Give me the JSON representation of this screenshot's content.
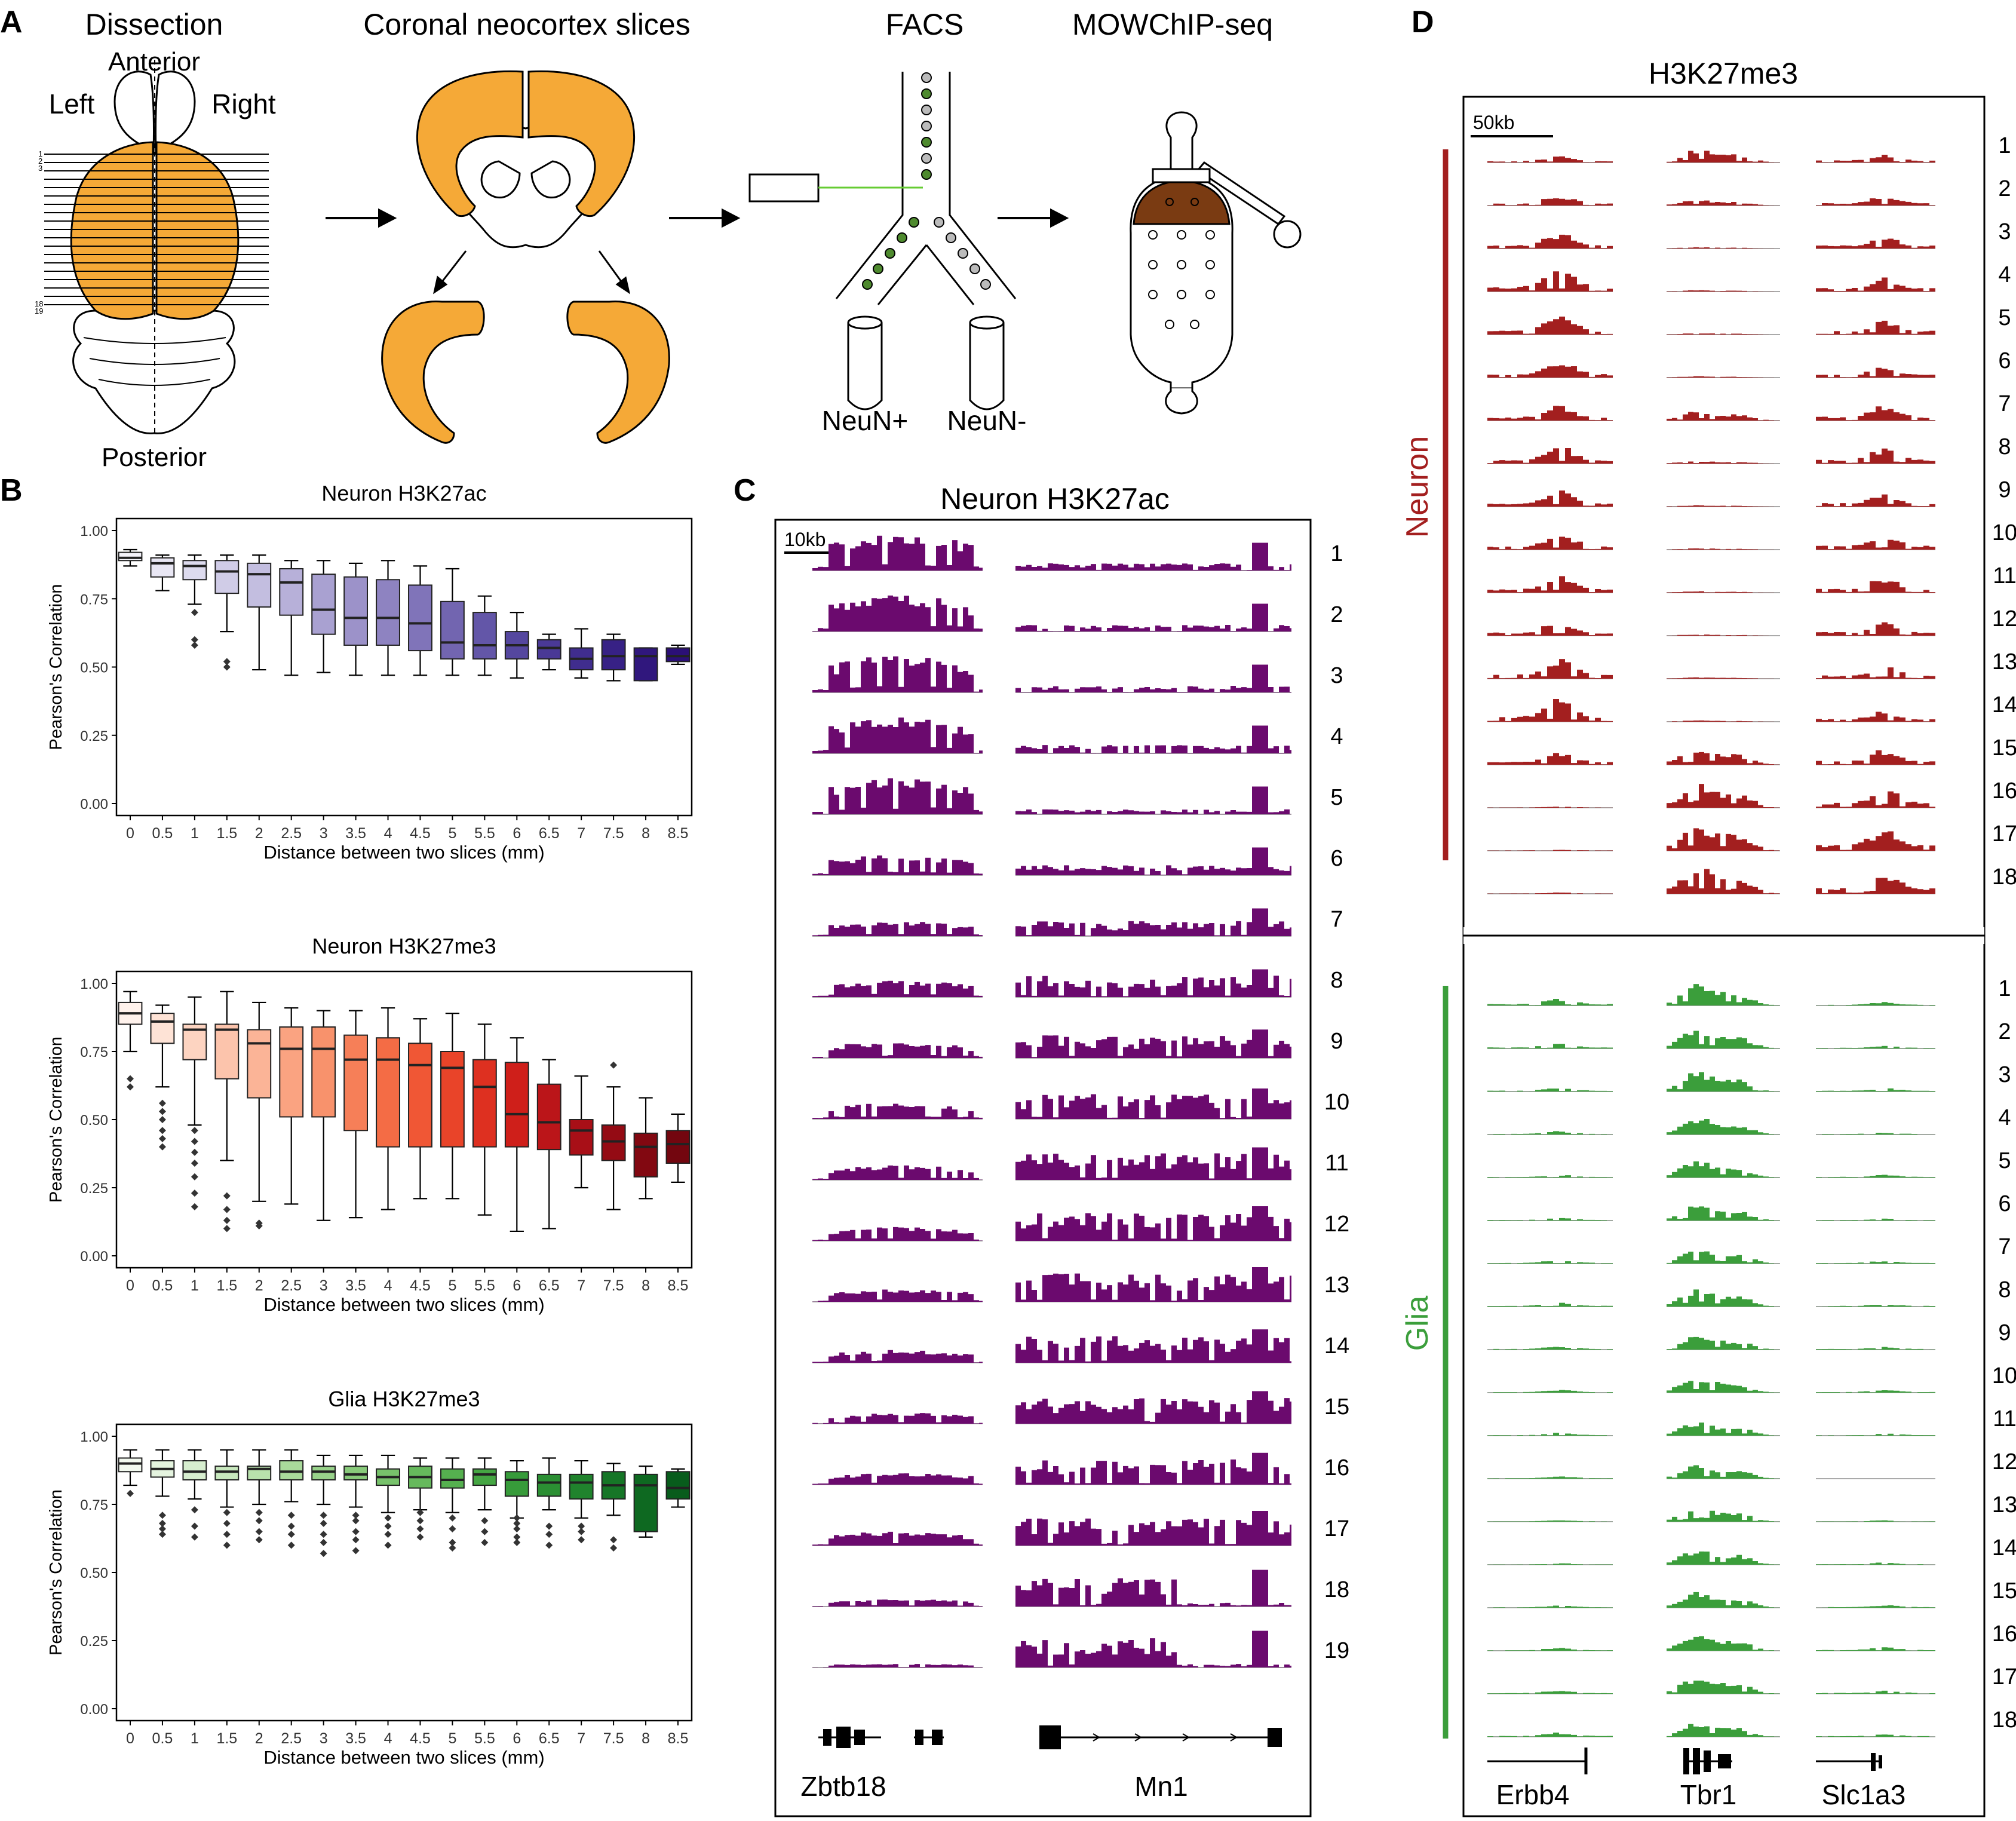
{
  "panels": {
    "A": {
      "letter": "A",
      "step_labels": [
        "Dissection",
        "Coronal neocortex slices",
        "FACS",
        "MOWChIP-seq"
      ],
      "brain": {
        "anterior": "Anterior",
        "posterior": "Posterior",
        "left": "Left",
        "right": "Right",
        "slice_ticks": [
          "1",
          "2",
          "3",
          "18",
          "19"
        ]
      },
      "facs": {
        "pos": "NeuN+",
        "neg": "NeuN-"
      }
    },
    "B": {
      "letter": "B",
      "tick_y": [
        "0.00",
        "0.25",
        "0.50",
        "0.75",
        "1.00"
      ],
      "xlabel": "Distance between two slices (mm)",
      "ylabel": "Pearson's Correlation"
    },
    "C": {
      "letter": "C",
      "title": "Neuron H3K27ac",
      "scale": "10kb",
      "genes": [
        "Zbtb18",
        "Mn1"
      ],
      "rows": [
        "1",
        "2",
        "3",
        "4",
        "5",
        "6",
        "7",
        "8",
        "9",
        "10",
        "11",
        "12",
        "13",
        "14",
        "15",
        "16",
        "17",
        "18",
        "19"
      ]
    },
    "D": {
      "letter": "D",
      "title": "H3K27me3",
      "scale": "50kb",
      "group_neuron": "Neuron",
      "group_glia": "Glia",
      "genes": [
        "Erbb4",
        "Tbr1",
        "Slc1a3"
      ],
      "rows": [
        "1",
        "2",
        "3",
        "4",
        "5",
        "6",
        "7",
        "8",
        "9",
        "10",
        "11",
        "12",
        "13",
        "14",
        "15",
        "16",
        "17",
        "18"
      ]
    }
  },
  "colors": {
    "orange": "#F5A937",
    "neuron_track": "#6B0A6E",
    "me3_neuron": "#A31F1F",
    "me3_glia": "#3B9E3B",
    "chip_brown": "#7A3B12",
    "cell_green": "#4E8A2E",
    "cell_grey": "#BBBBBB"
  },
  "chart_data": [
    {
      "type": "box",
      "title": "Neuron H3K27ac",
      "xlabel": "Distance between two slices (mm)",
      "ylabel": "Pearson's Correlation",
      "ylim": [
        0,
        1
      ],
      "categories": [
        "0",
        "0.5",
        "1",
        "1.5",
        "2",
        "2.5",
        "3",
        "3.5",
        "4",
        "4.5",
        "5",
        "5.5",
        "6",
        "6.5",
        "7",
        "7.5",
        "8",
        "8.5"
      ],
      "palette": [
        "#F4F3FA",
        "#E9E7F4",
        "#DDDBEE",
        "#D0CCE7",
        "#C3BEE0",
        "#B7B0D9",
        "#A9A1D1",
        "#9C92C9",
        "#8E83C1",
        "#8074B9",
        "#7265B0",
        "#6356A8",
        "#55479F",
        "#4A3996",
        "#402D8E",
        "#372185",
        "#30177D",
        "#2B0F76"
      ],
      "boxes": [
        {
          "min": 0.87,
          "q1": 0.89,
          "med": 0.9,
          "q3": 0.92,
          "max": 0.93,
          "out": []
        },
        {
          "min": 0.78,
          "q1": 0.83,
          "med": 0.88,
          "q3": 0.9,
          "max": 0.91,
          "out": []
        },
        {
          "min": 0.73,
          "q1": 0.82,
          "med": 0.87,
          "q3": 0.89,
          "max": 0.91,
          "out": [
            0.58,
            0.6,
            0.7
          ]
        },
        {
          "min": 0.63,
          "q1": 0.77,
          "med": 0.85,
          "q3": 0.89,
          "max": 0.91,
          "out": [
            0.5,
            0.52
          ]
        },
        {
          "min": 0.49,
          "q1": 0.72,
          "med": 0.84,
          "q3": 0.88,
          "max": 0.91,
          "out": []
        },
        {
          "min": 0.47,
          "q1": 0.69,
          "med": 0.81,
          "q3": 0.86,
          "max": 0.89,
          "out": []
        },
        {
          "min": 0.48,
          "q1": 0.62,
          "med": 0.71,
          "q3": 0.84,
          "max": 0.89,
          "out": []
        },
        {
          "min": 0.47,
          "q1": 0.58,
          "med": 0.68,
          "q3": 0.83,
          "max": 0.88,
          "out": []
        },
        {
          "min": 0.47,
          "q1": 0.58,
          "med": 0.68,
          "q3": 0.82,
          "max": 0.89,
          "out": []
        },
        {
          "min": 0.47,
          "q1": 0.56,
          "med": 0.66,
          "q3": 0.8,
          "max": 0.87,
          "out": []
        },
        {
          "min": 0.47,
          "q1": 0.53,
          "med": 0.59,
          "q3": 0.74,
          "max": 0.86,
          "out": []
        },
        {
          "min": 0.47,
          "q1": 0.53,
          "med": 0.58,
          "q3": 0.7,
          "max": 0.76,
          "out": []
        },
        {
          "min": 0.46,
          "q1": 0.53,
          "med": 0.58,
          "q3": 0.63,
          "max": 0.7,
          "out": []
        },
        {
          "min": 0.49,
          "q1": 0.53,
          "med": 0.57,
          "q3": 0.6,
          "max": 0.62,
          "out": []
        },
        {
          "min": 0.46,
          "q1": 0.49,
          "med": 0.53,
          "q3": 0.57,
          "max": 0.64,
          "out": []
        },
        {
          "min": 0.45,
          "q1": 0.49,
          "med": 0.54,
          "q3": 0.6,
          "max": 0.62,
          "out": []
        },
        {
          "min": 0.45,
          "q1": 0.45,
          "med": 0.54,
          "q3": 0.57,
          "max": 0.57,
          "out": []
        },
        {
          "min": 0.51,
          "q1": 0.52,
          "med": 0.54,
          "q3": 0.57,
          "max": 0.58,
          "out": []
        }
      ]
    },
    {
      "type": "box",
      "title": "Neuron H3K27me3",
      "xlabel": "Distance between two slices (mm)",
      "ylabel": "Pearson's Correlation",
      "ylim": [
        0,
        1
      ],
      "categories": [
        "0",
        "0.5",
        "1",
        "1.5",
        "2",
        "2.5",
        "3",
        "3.5",
        "4",
        "4.5",
        "5",
        "5.5",
        "6",
        "6.5",
        "7",
        "7.5",
        "8",
        "8.5"
      ],
      "palette": [
        "#FFF2EC",
        "#FEE3D6",
        "#FDD4C1",
        "#FCC4AC",
        "#FBB497",
        "#FAA381",
        "#F8926C",
        "#F67F58",
        "#F46C45",
        "#F05735",
        "#E94429",
        "#DE3020",
        "#CF1F1A",
        "#BB1519",
        "#A80F17",
        "#940B14",
        "#820811",
        "#73060F"
      ],
      "boxes": [
        {
          "min": 0.75,
          "q1": 0.85,
          "med": 0.89,
          "q3": 0.93,
          "max": 0.97,
          "out": [
            0.62,
            0.65
          ]
        },
        {
          "min": 0.62,
          "q1": 0.78,
          "med": 0.86,
          "q3": 0.89,
          "max": 0.92,
          "out": [
            0.4,
            0.43,
            0.46,
            0.5,
            0.53,
            0.56
          ]
        },
        {
          "min": 0.48,
          "q1": 0.72,
          "med": 0.83,
          "q3": 0.85,
          "max": 0.95,
          "out": [
            0.18,
            0.23,
            0.29,
            0.34,
            0.38,
            0.42,
            0.46
          ]
        },
        {
          "min": 0.35,
          "q1": 0.65,
          "med": 0.83,
          "q3": 0.85,
          "max": 0.97,
          "out": [
            0.1,
            0.13,
            0.17,
            0.22
          ]
        },
        {
          "min": 0.2,
          "q1": 0.58,
          "med": 0.78,
          "q3": 0.83,
          "max": 0.93,
          "out": [
            0.11,
            0.12
          ]
        },
        {
          "min": 0.19,
          "q1": 0.51,
          "med": 0.76,
          "q3": 0.84,
          "max": 0.91,
          "out": []
        },
        {
          "min": 0.13,
          "q1": 0.51,
          "med": 0.76,
          "q3": 0.84,
          "max": 0.9,
          "out": []
        },
        {
          "min": 0.14,
          "q1": 0.46,
          "med": 0.72,
          "q3": 0.81,
          "max": 0.9,
          "out": []
        },
        {
          "min": 0.17,
          "q1": 0.4,
          "med": 0.72,
          "q3": 0.8,
          "max": 0.91,
          "out": []
        },
        {
          "min": 0.21,
          "q1": 0.4,
          "med": 0.7,
          "q3": 0.78,
          "max": 0.87,
          "out": []
        },
        {
          "min": 0.21,
          "q1": 0.4,
          "med": 0.69,
          "q3": 0.75,
          "max": 0.89,
          "out": []
        },
        {
          "min": 0.15,
          "q1": 0.4,
          "med": 0.62,
          "q3": 0.72,
          "max": 0.85,
          "out": []
        },
        {
          "min": 0.09,
          "q1": 0.4,
          "med": 0.52,
          "q3": 0.71,
          "max": 0.8,
          "out": []
        },
        {
          "min": 0.1,
          "q1": 0.39,
          "med": 0.49,
          "q3": 0.63,
          "max": 0.72,
          "out": []
        },
        {
          "min": 0.25,
          "q1": 0.37,
          "med": 0.46,
          "q3": 0.5,
          "max": 0.66,
          "out": []
        },
        {
          "min": 0.17,
          "q1": 0.35,
          "med": 0.42,
          "q3": 0.48,
          "max": 0.62,
          "out": [
            0.7
          ]
        },
        {
          "min": 0.21,
          "q1": 0.29,
          "med": 0.4,
          "q3": 0.45,
          "max": 0.58,
          "out": []
        },
        {
          "min": 0.27,
          "q1": 0.34,
          "med": 0.41,
          "q3": 0.46,
          "max": 0.52,
          "out": []
        }
      ]
    },
    {
      "type": "box",
      "title": "Glia H3K27me3",
      "xlabel": "Distance between two slices (mm)",
      "ylabel": "Pearson's Correlation",
      "ylim": [
        0,
        1
      ],
      "categories": [
        "0",
        "0.5",
        "1",
        "1.5",
        "2",
        "2.5",
        "3",
        "3.5",
        "4",
        "4.5",
        "5",
        "5.5",
        "6",
        "6.5",
        "7",
        "7.5",
        "8",
        "8.5"
      ],
      "palette": [
        "#F2F9EF",
        "#E5F4DF",
        "#D7EECF",
        "#C8E8BE",
        "#B9E1AD",
        "#A9DA9B",
        "#98D28A",
        "#88CA7A",
        "#77C26B",
        "#66B95C",
        "#55B04F",
        "#45A643",
        "#379B3A",
        "#2B8F33",
        "#20832D",
        "#167627",
        "#0E6921",
        "#085C1C"
      ],
      "boxes": [
        {
          "min": 0.82,
          "q1": 0.87,
          "med": 0.9,
          "q3": 0.92,
          "max": 0.95,
          "out": [
            0.79
          ]
        },
        {
          "min": 0.78,
          "q1": 0.85,
          "med": 0.88,
          "q3": 0.91,
          "max": 0.95,
          "out": [
            0.64,
            0.66,
            0.68,
            0.71
          ]
        },
        {
          "min": 0.77,
          "q1": 0.84,
          "med": 0.87,
          "q3": 0.91,
          "max": 0.95,
          "out": [
            0.63,
            0.67,
            0.73
          ]
        },
        {
          "min": 0.74,
          "q1": 0.84,
          "med": 0.87,
          "q3": 0.89,
          "max": 0.95,
          "out": [
            0.6,
            0.64,
            0.68,
            0.72
          ]
        },
        {
          "min": 0.75,
          "q1": 0.84,
          "med": 0.88,
          "q3": 0.89,
          "max": 0.95,
          "out": [
            0.62,
            0.65,
            0.69,
            0.72
          ]
        },
        {
          "min": 0.76,
          "q1": 0.84,
          "med": 0.87,
          "q3": 0.91,
          "max": 0.95,
          "out": [
            0.6,
            0.64,
            0.67,
            0.71
          ]
        },
        {
          "min": 0.75,
          "q1": 0.84,
          "med": 0.87,
          "q3": 0.89,
          "max": 0.93,
          "out": [
            0.57,
            0.61,
            0.64,
            0.68,
            0.71
          ]
        },
        {
          "min": 0.74,
          "q1": 0.84,
          "med": 0.86,
          "q3": 0.89,
          "max": 0.93,
          "out": [
            0.58,
            0.62,
            0.65,
            0.69,
            0.71
          ]
        },
        {
          "min": 0.72,
          "q1": 0.82,
          "med": 0.85,
          "q3": 0.88,
          "max": 0.93,
          "out": [
            0.6,
            0.64,
            0.67,
            0.7
          ]
        },
        {
          "min": 0.73,
          "q1": 0.81,
          "med": 0.85,
          "q3": 0.89,
          "max": 0.92,
          "out": [
            0.63,
            0.66,
            0.69,
            0.72
          ]
        },
        {
          "min": 0.72,
          "q1": 0.81,
          "med": 0.84,
          "q3": 0.88,
          "max": 0.92,
          "out": [
            0.59,
            0.61,
            0.66,
            0.7
          ]
        },
        {
          "min": 0.73,
          "q1": 0.82,
          "med": 0.86,
          "q3": 0.88,
          "max": 0.92,
          "out": [
            0.61,
            0.65,
            0.69
          ]
        },
        {
          "min": 0.7,
          "q1": 0.78,
          "med": 0.84,
          "q3": 0.87,
          "max": 0.91,
          "out": [
            0.61,
            0.63,
            0.66,
            0.68,
            0.7
          ]
        },
        {
          "min": 0.73,
          "q1": 0.78,
          "med": 0.83,
          "q3": 0.86,
          "max": 0.92,
          "out": [
            0.6,
            0.64,
            0.67
          ]
        },
        {
          "min": 0.7,
          "q1": 0.77,
          "med": 0.83,
          "q3": 0.86,
          "max": 0.91,
          "out": [
            0.62,
            0.65,
            0.67
          ]
        },
        {
          "min": 0.71,
          "q1": 0.77,
          "med": 0.82,
          "q3": 0.87,
          "max": 0.9,
          "out": [
            0.59,
            0.62
          ]
        },
        {
          "min": 0.63,
          "q1": 0.65,
          "med": 0.82,
          "q3": 0.86,
          "max": 0.89,
          "out": []
        },
        {
          "min": 0.74,
          "q1": 0.77,
          "med": 0.81,
          "q3": 0.87,
          "max": 0.88,
          "out": []
        }
      ]
    }
  ]
}
